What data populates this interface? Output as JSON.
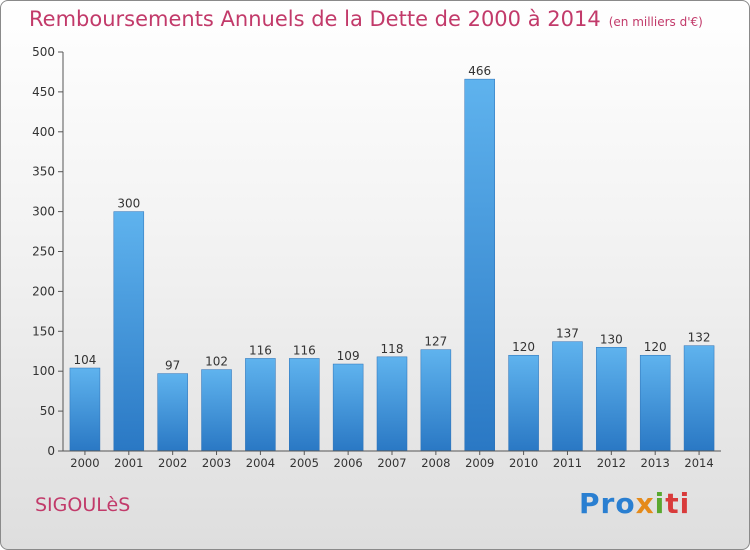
{
  "chart_data": {
    "type": "bar",
    "title": "Remboursements Annuels de la Dette de 2000 à 2014",
    "subtitle": "(en milliers d'€)",
    "categories": [
      "2000",
      "2001",
      "2002",
      "2003",
      "2004",
      "2005",
      "2006",
      "2007",
      "2008",
      "2009",
      "2010",
      "2011",
      "2012",
      "2013",
      "2014"
    ],
    "values": [
      104,
      300,
      97,
      102,
      116,
      116,
      109,
      118,
      127,
      466,
      120,
      137,
      130,
      120,
      132
    ],
    "yticks": [
      0,
      50,
      100,
      150,
      200,
      250,
      300,
      350,
      400,
      450,
      500
    ],
    "ylim": [
      0,
      500
    ],
    "grid": false,
    "bar_color": "#4a9fe0"
  },
  "commune": "SIGOULèS",
  "logo": {
    "p1": "Pro",
    "p2": "x",
    "p3": "i",
    "p4": "ti"
  }
}
